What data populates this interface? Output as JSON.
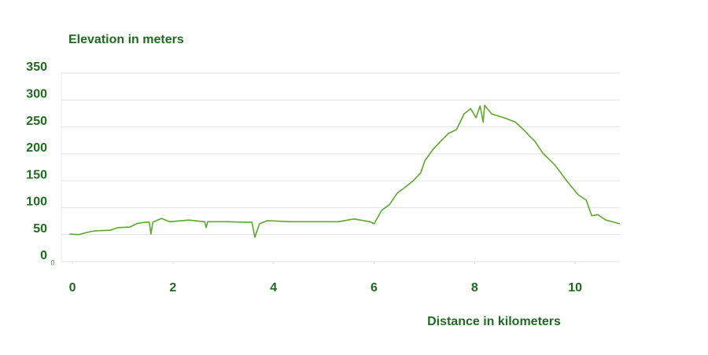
{
  "chart_data": {
    "type": "line",
    "title": "Elevation in meters",
    "x_label": "Distance in kilometers",
    "origin_label": "0",
    "color": "#5aaa2a",
    "grid": true,
    "x": [
      -0.06,
      0.13,
      0.28,
      0.44,
      0.75,
      0.91,
      1.14,
      1.3,
      1.46,
      1.53,
      1.56,
      1.6,
      1.77,
      1.93,
      2.32,
      2.63,
      2.66,
      2.69,
      3.1,
      3.41,
      3.57,
      3.63,
      3.72,
      3.88,
      4.35,
      4.82,
      5.29,
      5.6,
      5.92,
      6.0,
      6.15,
      6.31,
      6.46,
      6.62,
      6.78,
      6.93,
      7.01,
      7.17,
      7.32,
      7.48,
      7.64,
      7.79,
      7.92,
      8.03,
      8.11,
      8.17,
      8.2,
      8.34,
      8.58,
      8.81,
      8.97,
      9.2,
      9.36,
      9.6,
      9.83,
      10.06,
      10.22,
      10.33,
      10.45,
      10.61,
      10.77,
      10.89
    ],
    "values": [
      51,
      50,
      54,
      57,
      58,
      63,
      64,
      71,
      73,
      73,
      51,
      73,
      80,
      74,
      77,
      74,
      63,
      74,
      74,
      73,
      73,
      45,
      70,
      76,
      74,
      74,
      74,
      79,
      74,
      70,
      95,
      106,
      127,
      138,
      150,
      165,
      187,
      208,
      223,
      238,
      245,
      274,
      284,
      267,
      289,
      259,
      290,
      274,
      267,
      259,
      245,
      223,
      201,
      179,
      150,
      124,
      114,
      85,
      87,
      77,
      73,
      70
    ],
    "xlim": [
      -0.22,
      10.89
    ],
    "xticks": [
      0,
      2,
      4,
      6,
      8,
      10
    ],
    "ylim": [
      0,
      350
    ],
    "yticks": [
      0,
      50,
      100,
      150,
      200,
      250,
      300,
      350
    ]
  }
}
